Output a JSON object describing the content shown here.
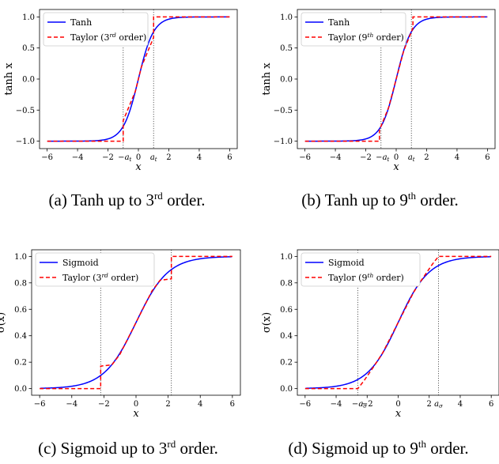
{
  "chart_data": [
    {
      "type": "line",
      "panel": "(a)",
      "ylabel": "tanh x",
      "xlabel": "x",
      "xlim": [
        -6.5,
        6.5
      ],
      "ylim": [
        -1.12,
        1.12
      ],
      "xticks": [
        {
          "value": -6,
          "label": "−6"
        },
        {
          "value": -4,
          "label": "−4"
        },
        {
          "value": -2,
          "label": "−2"
        },
        {
          "value": 0,
          "label": "0"
        },
        {
          "value": 2,
          "label": "2"
        },
        {
          "value": 4,
          "label": "4"
        },
        {
          "value": 6,
          "label": "6"
        }
      ],
      "yticks": [
        {
          "value": -1.0,
          "label": "−1.0"
        },
        {
          "value": -0.5,
          "label": "−0.5"
        },
        {
          "value": 0.0,
          "label": "0.0"
        },
        {
          "value": 0.5,
          "label": "0.5"
        },
        {
          "value": 1.0,
          "label": "1.0"
        }
      ],
      "threshold": {
        "value": 1.0,
        "label_base": "a",
        "label_sub": "t"
      },
      "legend": {
        "position": "top-left",
        "entries": [
          {
            "name": "Tanh",
            "color": "#0000ff",
            "style": "solid"
          },
          {
            "name": "Taylor (3",
            "sup": "rd",
            "suffix": " order)",
            "color": "#ff0000",
            "style": "dashed"
          }
        ]
      },
      "series": [
        {
          "name": "Tanh",
          "kind": "tanh"
        },
        {
          "name": "Taylor (3rd order)",
          "kind": "tanh_taylor",
          "points": [
            [
              -6,
              -1.0
            ],
            [
              -1.0,
              -1.0
            ],
            [
              -1.0,
              -0.67
            ],
            [
              -0.2,
              -0.197
            ],
            [
              0.0,
              0.0
            ],
            [
              0.2,
              0.197
            ],
            [
              1.0,
              0.67
            ],
            [
              1.0,
              1.0
            ],
            [
              6,
              1.0
            ]
          ]
        }
      ]
    },
    {
      "type": "line",
      "panel": "(b)",
      "ylabel": "tanh x",
      "xlabel": "x",
      "xlim": [
        -6.5,
        6.5
      ],
      "ylim": [
        -1.12,
        1.12
      ],
      "xticks": [
        {
          "value": -6,
          "label": "−6"
        },
        {
          "value": -4,
          "label": "−4"
        },
        {
          "value": -2,
          "label": "−2"
        },
        {
          "value": 0,
          "label": "0"
        },
        {
          "value": 2,
          "label": "2"
        },
        {
          "value": 4,
          "label": "4"
        },
        {
          "value": 6,
          "label": "6"
        }
      ],
      "yticks": [
        {
          "value": -1.0,
          "label": "−1.0"
        },
        {
          "value": -0.5,
          "label": "−0.5"
        },
        {
          "value": 0.0,
          "label": "0.0"
        },
        {
          "value": 0.5,
          "label": "0.5"
        },
        {
          "value": 1.0,
          "label": "1.0"
        }
      ],
      "threshold": {
        "value": 1.0,
        "label_base": "a",
        "label_sub": "t"
      },
      "legend": {
        "position": "top-left",
        "entries": [
          {
            "name": "Tanh",
            "color": "#0000ff",
            "style": "solid"
          },
          {
            "name": "Taylor (9",
            "sup": "th",
            "suffix": " order)",
            "color": "#ff0000",
            "style": "dashed"
          }
        ]
      },
      "series": [
        {
          "name": "Tanh",
          "kind": "tanh"
        },
        {
          "name": "Taylor (9th order)",
          "kind": "tanh_taylor",
          "points": [
            [
              -6,
              -1.0
            ],
            [
              -1.1,
              -1.0
            ],
            [
              -1.1,
              -0.82
            ],
            [
              -0.5,
              -0.46
            ],
            [
              0.0,
              0.0
            ],
            [
              0.5,
              0.46
            ],
            [
              1.1,
              0.82
            ],
            [
              1.1,
              1.0
            ],
            [
              6,
              1.0
            ]
          ]
        }
      ]
    },
    {
      "type": "line",
      "panel": "(c)",
      "ylabel": "σ(x)",
      "xlabel": "x",
      "xlim": [
        -6.5,
        6.5
      ],
      "ylim": [
        -0.05,
        1.05
      ],
      "xticks": [
        {
          "value": -6,
          "label": "−6"
        },
        {
          "value": -4,
          "label": "−4"
        },
        {
          "value": -2,
          "label": "−2"
        },
        {
          "value": 0,
          "label": "0"
        },
        {
          "value": 2,
          "label": "2"
        },
        {
          "value": 4,
          "label": "4"
        },
        {
          "value": 6,
          "label": "6"
        }
      ],
      "yticks": [
        {
          "value": 0.0,
          "label": "0.0"
        },
        {
          "value": 0.2,
          "label": "0.2"
        },
        {
          "value": 0.4,
          "label": "0.4"
        },
        {
          "value": 0.6,
          "label": "0.6"
        },
        {
          "value": 0.8,
          "label": "0.8"
        },
        {
          "value": 1.0,
          "label": "1.0"
        }
      ],
      "threshold": {
        "value": 2.2,
        "label_base": "",
        "label_sub": ""
      },
      "legend": {
        "position": "top-left",
        "entries": [
          {
            "name": "Sigmoid",
            "color": "#0000ff",
            "style": "solid"
          },
          {
            "name": "Taylor (3",
            "sup": "rd",
            "suffix": " order)",
            "color": "#ff0000",
            "style": "dashed"
          }
        ]
      },
      "series": [
        {
          "name": "Sigmoid",
          "kind": "sigmoid"
        },
        {
          "name": "Taylor (3rd order)",
          "kind": "sigmoid_taylor",
          "points": [
            [
              -6,
              0.0
            ],
            [
              -2.2,
              0.0
            ],
            [
              -2.2,
              0.17
            ],
            [
              -1.5,
              0.18
            ],
            [
              -1.0,
              0.26
            ],
            [
              0.0,
              0.5
            ],
            [
              1.0,
              0.74
            ],
            [
              1.5,
              0.82
            ],
            [
              2.2,
              0.83
            ],
            [
              2.2,
              1.0
            ],
            [
              6,
              1.0
            ]
          ]
        }
      ]
    },
    {
      "type": "line",
      "panel": "(d)",
      "ylabel": "σ(x)",
      "xlabel": "x",
      "xlim": [
        -6.5,
        6.5
      ],
      "ylim": [
        -0.05,
        1.05
      ],
      "xticks": [
        {
          "value": -6,
          "label": "−6"
        },
        {
          "value": -4,
          "label": "−4"
        },
        {
          "value": -2,
          "label": "−2"
        },
        {
          "value": 0,
          "label": "0"
        },
        {
          "value": 2,
          "label": "2"
        },
        {
          "value": 4,
          "label": "4"
        },
        {
          "value": 6,
          "label": "6"
        }
      ],
      "yticks": [
        {
          "value": 0.0,
          "label": "0.0"
        },
        {
          "value": 0.2,
          "label": "0.2"
        },
        {
          "value": 0.4,
          "label": "0.4"
        },
        {
          "value": 0.6,
          "label": "0.6"
        },
        {
          "value": 0.8,
          "label": "0.8"
        },
        {
          "value": 1.0,
          "label": "1.0"
        }
      ],
      "threshold": {
        "value": 2.6,
        "label_base": "a",
        "label_sub": "σ"
      },
      "legend": {
        "position": "top-left",
        "entries": [
          {
            "name": "Sigmoid",
            "color": "#0000ff",
            "style": "solid"
          },
          {
            "name": "Taylor (9",
            "sup": "th",
            "suffix": " order)",
            "color": "#ff0000",
            "style": "dashed"
          }
        ]
      },
      "series": [
        {
          "name": "Sigmoid",
          "kind": "sigmoid"
        },
        {
          "name": "Taylor (9th order)",
          "kind": "sigmoid_taylor",
          "points": [
            [
              -6,
              0.0
            ],
            [
              -2.6,
              0.0
            ],
            [
              -2.2,
              0.06
            ],
            [
              -1.5,
              0.18
            ],
            [
              -1.0,
              0.27
            ],
            [
              0.0,
              0.5
            ],
            [
              1.0,
              0.73
            ],
            [
              1.5,
              0.82
            ],
            [
              2.2,
              0.94
            ],
            [
              2.6,
              1.0
            ],
            [
              6,
              1.0
            ]
          ]
        }
      ]
    }
  ],
  "captions": [
    {
      "pre": "(a) Tanh up to 3",
      "sup": "rd",
      "post": " order."
    },
    {
      "pre": "(b) Tanh up to 9",
      "sup": "th",
      "post": " order."
    },
    {
      "pre": "(c) Sigmoid up to 3",
      "sup": "rd",
      "post": " order."
    },
    {
      "pre": "(d) Sigmoid up to 9",
      "sup": "th",
      "post": " order."
    }
  ]
}
